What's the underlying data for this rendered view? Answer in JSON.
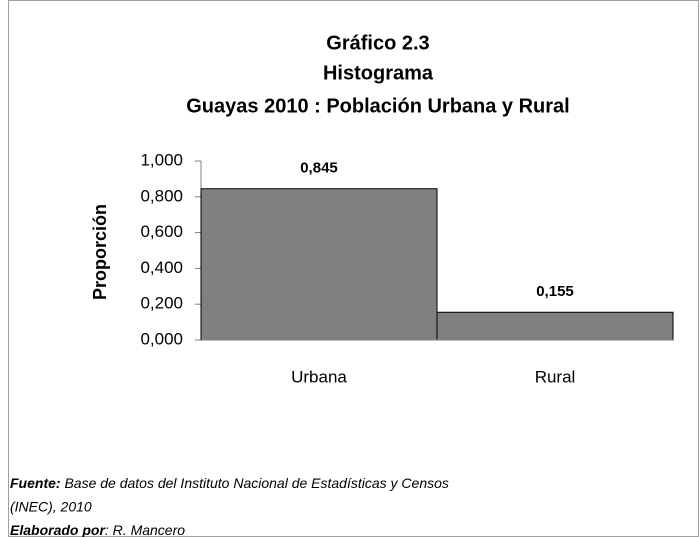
{
  "chart_data": {
    "type": "bar",
    "title": [
      "Gráfico 2.3",
      "Histograma",
      "Guayas 2010 : Población Urbana y Rural"
    ],
    "y_label": "Proporción",
    "categories": [
      "Urbana",
      "Rural"
    ],
    "values": [
      0.845,
      0.155
    ],
    "value_labels": [
      "0,845",
      "0,155"
    ],
    "color": "#808080",
    "ylim": [
      0,
      1
    ],
    "yticks": [
      {
        "value": 0,
        "label": "0,000"
      },
      {
        "value": 0.2,
        "label": "0,200"
      },
      {
        "value": 0.4,
        "label": "0,400"
      },
      {
        "value": 0.6,
        "label": "0,600"
      },
      {
        "value": 0.8,
        "label": "0,800"
      },
      {
        "value": 1,
        "label": "1,000"
      }
    ],
    "grid": false
  },
  "notes": {
    "source": {
      "label": "Fuente:",
      "lines": [
        "Base de datos del  Instituto Nacional de Estadísticas y Censos",
        "(INEC), 2010"
      ]
    },
    "credit": {
      "label": "Elaborado por",
      "text": ": R. Mancero"
    }
  }
}
